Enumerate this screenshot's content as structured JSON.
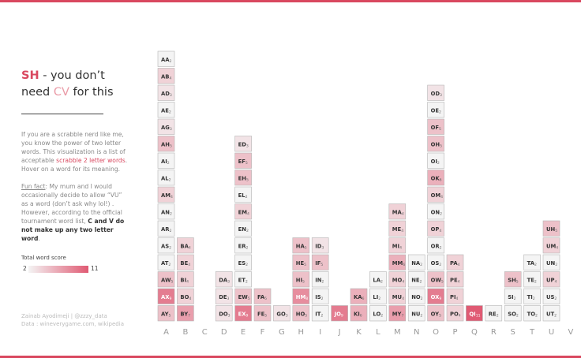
{
  "header": {
    "title_prefix": "SH",
    "title_part1": " - you don’t",
    "title_part2": "need ",
    "title_cv": "CV",
    "title_part3": " for this"
  },
  "description": {
    "p1_a": "If you are a scrabble nerd like me, you know the power of two letter words. This visualization is a list of acceptable ",
    "p1_link": "scrabble 2 letter words",
    "p1_b": ". Hover on a word for its meaning.",
    "p2_label": "Fun fact",
    "p2_a": ": My mum and I would occasionally decide to allow “VU” as a word (don’t ask why lol!) . However, according to the official tournament word list, ",
    "p2_bold": "C and V do not make up any two letter word",
    "p2_end": "."
  },
  "legend": {
    "title": "Total word score",
    "min": "2",
    "max": "11",
    "color_low": "#f4f4f4",
    "color_high": "#e05a73"
  },
  "credits": {
    "line1": "Zainab Ayodimeji | @zzzy_data",
    "line2": "Data : wineverygame.com, wikipedia"
  },
  "colors": {
    "accent": "#d9485f"
  },
  "chart_data": {
    "type": "table",
    "xlabel": "",
    "ylabel": "",
    "value_meaning": "Total word score",
    "categories": [
      "A",
      "B",
      "C",
      "D",
      "E",
      "F",
      "G",
      "H",
      "I",
      "J",
      "K",
      "L",
      "M",
      "N",
      "O",
      "P",
      "Q",
      "R",
      "S",
      "T",
      "U",
      "V"
    ],
    "columns": [
      {
        "letter": "A",
        "words": [
          [
            "AY",
            5
          ],
          [
            "AX",
            9
          ],
          [
            "AW",
            5
          ],
          [
            "AT",
            2
          ],
          [
            "AS",
            2
          ],
          [
            "AR",
            2
          ],
          [
            "AN",
            2
          ],
          [
            "AM",
            4
          ],
          [
            "AL",
            2
          ],
          [
            "AI",
            2
          ],
          [
            "AH",
            5
          ],
          [
            "AG",
            3
          ],
          [
            "AE",
            2
          ],
          [
            "AD",
            3
          ],
          [
            "AB",
            4
          ],
          [
            "AA",
            2
          ]
        ]
      },
      {
        "letter": "B",
        "words": [
          [
            "BY",
            7
          ],
          [
            "BO",
            4
          ],
          [
            "BI",
            4
          ],
          [
            "BE",
            4
          ],
          [
            "BA",
            4
          ]
        ]
      },
      {
        "letter": "C",
        "words": []
      },
      {
        "letter": "D",
        "words": [
          [
            "DO",
            3
          ],
          [
            "DE",
            3
          ],
          [
            "DA",
            3
          ]
        ]
      },
      {
        "letter": "E",
        "words": [
          [
            "EX",
            9
          ],
          [
            "EW",
            5
          ],
          [
            "ET",
            2
          ],
          [
            "ES",
            2
          ],
          [
            "ER",
            2
          ],
          [
            "EN",
            2
          ],
          [
            "EM",
            4
          ],
          [
            "EL",
            2
          ],
          [
            "EH",
            5
          ],
          [
            "EF",
            5
          ],
          [
            "ED",
            3
          ]
        ]
      },
      {
        "letter": "F",
        "words": [
          [
            "FE",
            5
          ],
          [
            "FA",
            5
          ]
        ]
      },
      {
        "letter": "G",
        "words": [
          [
            "GO",
            3
          ]
        ]
      },
      {
        "letter": "H",
        "words": [
          [
            "HO",
            5
          ],
          [
            "HM",
            8
          ],
          [
            "HI",
            5
          ],
          [
            "HE",
            5
          ],
          [
            "HA",
            5
          ]
        ]
      },
      {
        "letter": "I",
        "words": [
          [
            "IT",
            2
          ],
          [
            "IS",
            2
          ],
          [
            "IN",
            2
          ],
          [
            "IF",
            5
          ],
          [
            "ID",
            3
          ]
        ]
      },
      {
        "letter": "J",
        "words": [
          [
            "JO",
            9
          ]
        ]
      },
      {
        "letter": "K",
        "words": [
          [
            "KI",
            6
          ],
          [
            "KA",
            6
          ]
        ]
      },
      {
        "letter": "L",
        "words": [
          [
            "LO",
            2
          ],
          [
            "LI",
            2
          ],
          [
            "LA",
            2
          ]
        ]
      },
      {
        "letter": "M",
        "words": [
          [
            "MY",
            7
          ],
          [
            "MU",
            4
          ],
          [
            "MO",
            4
          ],
          [
            "MM",
            6
          ],
          [
            "MI",
            4
          ],
          [
            "ME",
            4
          ],
          [
            "MA",
            4
          ]
        ]
      },
      {
        "letter": "N",
        "words": [
          [
            "NU",
            2
          ],
          [
            "NO",
            2
          ],
          [
            "NE",
            2
          ],
          [
            "NA",
            2
          ]
        ]
      },
      {
        "letter": "O",
        "words": [
          [
            "OY",
            5
          ],
          [
            "OX",
            9
          ],
          [
            "OW",
            5
          ],
          [
            "OS",
            2
          ],
          [
            "OR",
            2
          ],
          [
            "OP",
            4
          ],
          [
            "ON",
            2
          ],
          [
            "OM",
            4
          ],
          [
            "OK",
            6
          ],
          [
            "OI",
            2
          ],
          [
            "OH",
            5
          ],
          [
            "OF",
            5
          ],
          [
            "OE",
            2
          ],
          [
            "OD",
            3
          ]
        ]
      },
      {
        "letter": "P",
        "words": [
          [
            "PO",
            4
          ],
          [
            "PI",
            4
          ],
          [
            "PE",
            4
          ],
          [
            "PA",
            4
          ]
        ]
      },
      {
        "letter": "Q",
        "words": [
          [
            "QI",
            11
          ]
        ]
      },
      {
        "letter": "R",
        "words": [
          [
            "RE",
            2
          ]
        ]
      },
      {
        "letter": "S",
        "words": [
          [
            "SO",
            2
          ],
          [
            "SI",
            2
          ],
          [
            "SH",
            5
          ]
        ]
      },
      {
        "letter": "T",
        "words": [
          [
            "TO",
            2
          ],
          [
            "TI",
            2
          ],
          [
            "TE",
            2
          ],
          [
            "TA",
            2
          ]
        ]
      },
      {
        "letter": "U",
        "words": [
          [
            "UT",
            2
          ],
          [
            "US",
            2
          ],
          [
            "UP",
            4
          ],
          [
            "UN",
            2
          ],
          [
            "UM",
            4
          ],
          [
            "UH",
            5
          ]
        ]
      },
      {
        "letter": "V",
        "words": []
      }
    ],
    "color_range": [
      2,
      11
    ],
    "grid": false
  }
}
